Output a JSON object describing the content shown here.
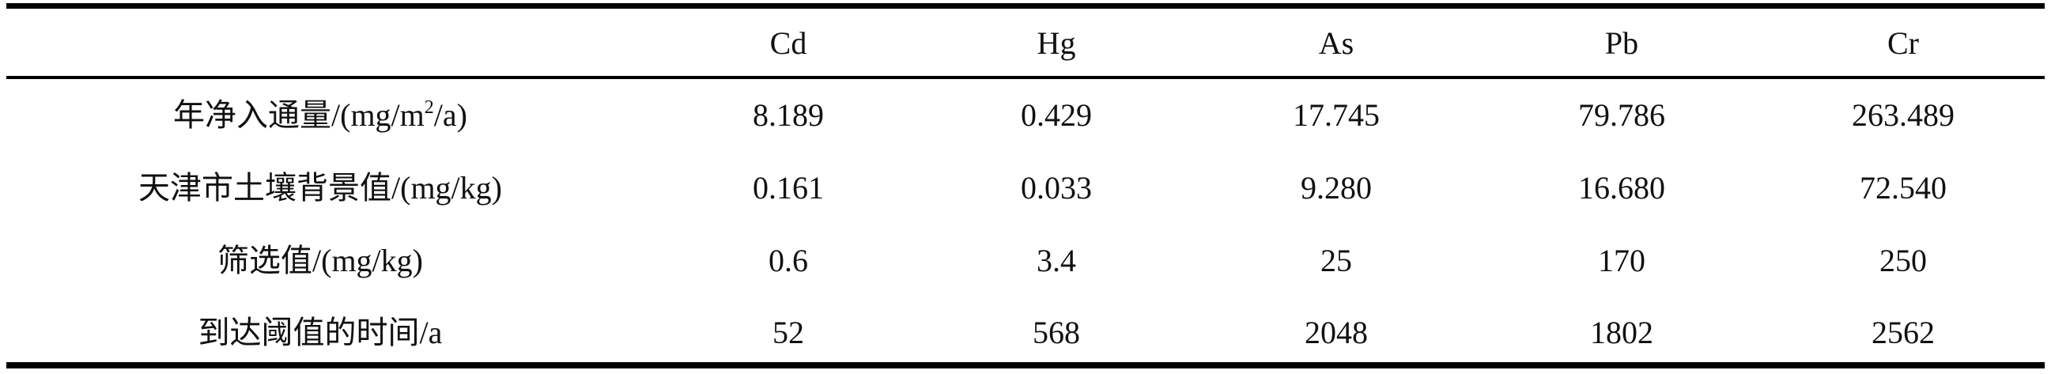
{
  "table": {
    "columns": [
      "",
      "Cd",
      "Hg",
      "As",
      "Pb",
      "Cr"
    ],
    "rows": [
      {
        "label": "年净入通量/(mg/m",
        "label_sup": "2",
        "label_tail": "/a)",
        "values": [
          "8.189",
          "0.429",
          "17.745",
          "79.786",
          "263.489"
        ]
      },
      {
        "label": "天津市土壤背景值/(mg/kg)",
        "values": [
          "0.161",
          "0.033",
          "9.280",
          "16.680",
          "72.540"
        ]
      },
      {
        "label": "筛选值/(mg/kg)",
        "values": [
          "0.6",
          "3.4",
          "25",
          "170",
          "250"
        ]
      },
      {
        "label": "到达阈值的时间/a",
        "values": [
          "52",
          "568",
          "2048",
          "1802",
          "2562"
        ]
      }
    ]
  }
}
